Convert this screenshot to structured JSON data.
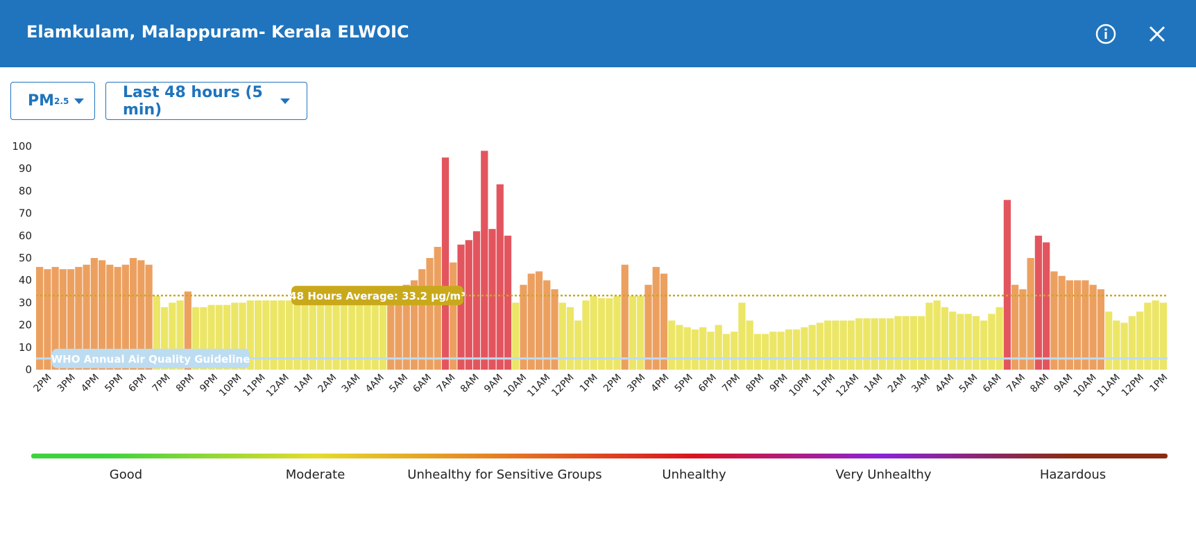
{
  "header": {
    "title": "Elamkulam, Malappuram- Kerala ELWOIC"
  },
  "controls": {
    "pollutant": {
      "main": "PM",
      "sub": "2.5"
    },
    "range": "Last 48 hours (5 min)"
  },
  "chart_data": {
    "type": "bar",
    "ylim": [
      0,
      100
    ],
    "yticks": [
      0,
      10,
      20,
      30,
      40,
      50,
      60,
      70,
      80,
      90,
      100
    ],
    "grid": false,
    "hour_labels": [
      "2PM",
      "3PM",
      "4PM",
      "5PM",
      "6PM",
      "7PM",
      "8PM",
      "9PM",
      "10PM",
      "11PM",
      "12AM",
      "1AM",
      "2AM",
      "3AM",
      "4AM",
      "5AM",
      "6AM",
      "7AM",
      "8AM",
      "9AM",
      "10AM",
      "11AM",
      "12PM",
      "1PM",
      "2PM",
      "3PM",
      "4PM",
      "5PM",
      "6PM",
      "7PM",
      "8PM",
      "9PM",
      "10PM",
      "11PM",
      "12AM",
      "1AM",
      "2AM",
      "3AM",
      "4AM",
      "5AM",
      "6AM",
      "7AM",
      "8AM",
      "9AM",
      "10AM",
      "11AM",
      "12PM",
      "1PM"
    ],
    "values": [
      46,
      45,
      46,
      45,
      45,
      46,
      47,
      50,
      49,
      47,
      46,
      47,
      50,
      49,
      47,
      33,
      28,
      30,
      31,
      35,
      28,
      28,
      29,
      29,
      29,
      30,
      30,
      31,
      31,
      31,
      31,
      31,
      31,
      31,
      31,
      31,
      31,
      31,
      32,
      32,
      32,
      32,
      32,
      32,
      33,
      36,
      37,
      38,
      40,
      45,
      50,
      55,
      95,
      48,
      56,
      58,
      62,
      98,
      63,
      83,
      60,
      30,
      38,
      43,
      44,
      40,
      36,
      30,
      28,
      22,
      31,
      33,
      32,
      32,
      33,
      47,
      33,
      33,
      38,
      46,
      43,
      22,
      20,
      19,
      18,
      19,
      17,
      20,
      16,
      17,
      30,
      22,
      16,
      16,
      17,
      17,
      18,
      18,
      19,
      20,
      21,
      22,
      22,
      22,
      22,
      23,
      23,
      23,
      23,
      23,
      24,
      24,
      24,
      24,
      30,
      31,
      28,
      26,
      25,
      25,
      24,
      22,
      25,
      28,
      76,
      38,
      36,
      50,
      60,
      57,
      44,
      42,
      40,
      40,
      40,
      38,
      36,
      26,
      22,
      21,
      24,
      26,
      30,
      31,
      30
    ],
    "levels": [
      2,
      2,
      2,
      2,
      2,
      2,
      2,
      2,
      2,
      2,
      2,
      2,
      2,
      2,
      2,
      1,
      1,
      1,
      1,
      2,
      1,
      1,
      1,
      1,
      1,
      1,
      1,
      1,
      1,
      1,
      1,
      1,
      1,
      1,
      1,
      1,
      1,
      1,
      1,
      1,
      1,
      1,
      1,
      1,
      1,
      2,
      2,
      2,
      2,
      2,
      2,
      2,
      3,
      2,
      3,
      3,
      3,
      3,
      3,
      3,
      3,
      1,
      2,
      2,
      2,
      2,
      2,
      1,
      1,
      1,
      1,
      1,
      1,
      1,
      1,
      2,
      1,
      1,
      2,
      2,
      2,
      1,
      1,
      1,
      1,
      1,
      1,
      1,
      1,
      1,
      1,
      1,
      1,
      1,
      1,
      1,
      1,
      1,
      1,
      1,
      1,
      1,
      1,
      1,
      1,
      1,
      1,
      1,
      1,
      1,
      1,
      1,
      1,
      1,
      1,
      1,
      1,
      1,
      1,
      1,
      1,
      1,
      1,
      1,
      3,
      2,
      2,
      2,
      3,
      3,
      2,
      2,
      2,
      2,
      2,
      2,
      2,
      1,
      1,
      1,
      1,
      1,
      1,
      1,
      1
    ],
    "average": {
      "value": 33.2,
      "label": "48 Hours Average: 33.2 µg/m³",
      "color": "#c9a91c"
    },
    "who_guideline": {
      "value": 5,
      "label": "WHO Annual Air Quality Guideline",
      "color": "#bcdcf2"
    },
    "aqi_scale": [
      {
        "label": "Good",
        "color": "#3fd23f"
      },
      {
        "label": "Moderate",
        "color": "#e4dc2c"
      },
      {
        "label": "Unhealthy for Sensitive Groups",
        "color": "#e57b22"
      },
      {
        "label": "Unhealthy",
        "color": "#d81420"
      },
      {
        "label": "Very Unhealthy",
        "color": "#8a22d8"
      },
      {
        "label": "Hazardous",
        "color": "#8a2c10"
      }
    ]
  }
}
